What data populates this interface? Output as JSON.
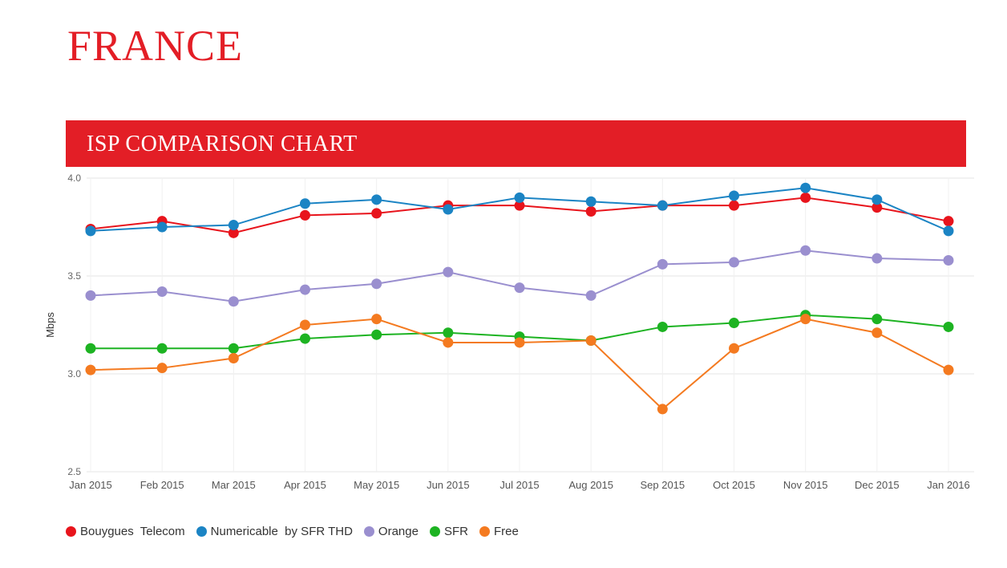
{
  "header": {
    "country": "FRANCE",
    "banner_title": "ISP COMPARISON CHART"
  },
  "chart_data": {
    "type": "line",
    "title": "ISP COMPARISON CHART",
    "xlabel": "",
    "ylabel": "Mbps",
    "ylim": [
      2.5,
      4.0
    ],
    "yticks": [
      "2.5",
      "3.0",
      "3.5",
      "4.0"
    ],
    "ytick_values": [
      2.5,
      3.0,
      3.5,
      4.0
    ],
    "grid": true,
    "legend_position": "bottom-left",
    "categories": [
      "Jan 2015",
      "Feb 2015",
      "Mar 2015",
      "Apr 2015",
      "May 2015",
      "Jun 2015",
      "Jul 2015",
      "Aug 2015",
      "Sep 2015",
      "Oct 2015",
      "Nov 2015",
      "Dec 2015",
      "Jan 2016"
    ],
    "series": [
      {
        "name": "Bouygues  Telecom",
        "color": "#e8141c",
        "values": [
          3.74,
          3.78,
          3.72,
          3.81,
          3.82,
          3.86,
          3.86,
          3.83,
          3.86,
          3.86,
          3.9,
          3.85,
          3.78
        ]
      },
      {
        "name": "Numericable  by SFR THD",
        "color": "#1b84c4",
        "values": [
          3.73,
          3.75,
          3.76,
          3.87,
          3.89,
          3.84,
          3.9,
          3.88,
          3.86,
          3.91,
          3.95,
          3.89,
          3.73
        ]
      },
      {
        "name": "Orange",
        "color": "#9a8fcf",
        "values": [
          3.4,
          3.42,
          3.37,
          3.43,
          3.46,
          3.52,
          3.44,
          3.4,
          3.56,
          3.57,
          3.63,
          3.59,
          3.58
        ]
      },
      {
        "name": "SFR",
        "color": "#1db322",
        "values": [
          3.13,
          3.13,
          3.13,
          3.18,
          3.2,
          3.21,
          3.19,
          3.17,
          3.24,
          3.26,
          3.3,
          3.28,
          3.24
        ]
      },
      {
        "name": "Free",
        "color": "#f47a20",
        "values": [
          3.02,
          3.03,
          3.08,
          3.25,
          3.28,
          3.16,
          3.16,
          3.17,
          2.82,
          3.13,
          3.28,
          3.21,
          3.02
        ]
      }
    ]
  }
}
